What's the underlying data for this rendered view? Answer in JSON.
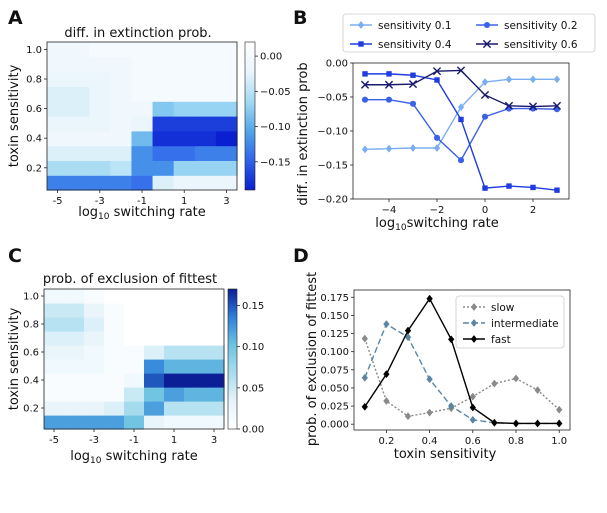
{
  "panels": {
    "A": {
      "letter": "A",
      "chart_data": {
        "type": "heatmap",
        "title": "diff. in extinction prob.",
        "xlabel_prefix": "log",
        "xlabel_sub": "10",
        "xlabel_suffix": " switching rate",
        "ylabel": "toxin sensitivity",
        "x_values": [
          -5,
          -4,
          -3,
          -2,
          -1,
          0,
          1,
          2,
          3
        ],
        "x_tick_labels": [
          "-5",
          "-3",
          "-1",
          "1",
          "3"
        ],
        "x_tick_positions": [
          -5,
          -3,
          -1,
          1,
          3
        ],
        "y_values": [
          0.1,
          0.2,
          0.3,
          0.4,
          0.5,
          0.6,
          0.7,
          0.8,
          0.9,
          1.0
        ],
        "y_tick_labels": [
          "0.2",
          "0.4",
          "0.6",
          "0.8",
          "1.0"
        ],
        "y_tick_positions": [
          0.2,
          0.4,
          0.6,
          0.8,
          1.0
        ],
        "colorbar": {
          "min": -0.19,
          "max": 0.02,
          "ticks": [
            0.0,
            -0.05,
            -0.1,
            -0.15
          ],
          "tick_labels": [
            "0.00",
            "−0.05",
            "−0.10",
            "−0.15"
          ],
          "colors": [
            "#0a1fd0",
            "#2f63ea",
            "#52a6ea",
            "#a3dbf3",
            "#eaf5fc",
            "#ffffff"
          ]
        },
        "z": [
          [
            -0.13,
            -0.13,
            -0.13,
            -0.13,
            -0.14,
            -0.03,
            -0.02,
            -0.02,
            -0.02
          ],
          [
            -0.06,
            -0.06,
            -0.06,
            -0.05,
            -0.12,
            -0.12,
            -0.07,
            -0.07,
            -0.07
          ],
          [
            -0.03,
            -0.03,
            -0.03,
            -0.03,
            -0.12,
            -0.14,
            -0.14,
            -0.13,
            -0.13
          ],
          [
            -0.01,
            -0.01,
            -0.01,
            -0.01,
            -0.09,
            -0.18,
            -0.18,
            -0.18,
            -0.19
          ],
          [
            -0.02,
            -0.02,
            -0.02,
            -0.01,
            -0.02,
            -0.17,
            -0.17,
            -0.17,
            -0.17
          ],
          [
            -0.03,
            -0.03,
            -0.02,
            -0.01,
            -0.01,
            -0.08,
            -0.07,
            -0.07,
            -0.07
          ],
          [
            -0.03,
            -0.03,
            -0.02,
            -0.01,
            0.0,
            0.0,
            0.0,
            0.0,
            0.0
          ],
          [
            -0.02,
            -0.02,
            -0.02,
            -0.01,
            0.0,
            0.0,
            0.0,
            0.0,
            0.0
          ],
          [
            -0.01,
            -0.01,
            -0.01,
            -0.01,
            0.0,
            0.0,
            0.0,
            0.0,
            0.0
          ],
          [
            -0.01,
            -0.01,
            0.0,
            0.0,
            0.0,
            0.0,
            0.0,
            0.0,
            0.0
          ]
        ]
      }
    },
    "B": {
      "letter": "B",
      "chart_data": {
        "type": "line",
        "title": "",
        "xlabel_prefix": "log",
        "xlabel_sub": "10",
        "xlabel_suffix": "switching rate",
        "ylabel": "diff. in extinction prob",
        "xlim": [
          -5.5,
          3.5
        ],
        "ylim": [
          -0.2,
          0.0
        ],
        "x_ticks": [
          -4,
          -2,
          0,
          2
        ],
        "x_tick_labels": [
          "−4",
          "−2",
          "0",
          "2"
        ],
        "y_ticks": [
          -0.2,
          -0.15,
          -0.1,
          -0.05,
          0.0
        ],
        "y_tick_labels": [
          "−0.20",
          "−0.15",
          "−0.10",
          "−0.05",
          "0.00"
        ],
        "x": [
          -5,
          -4,
          -3,
          -2,
          -1,
          0,
          1,
          2,
          3
        ],
        "legend_position": "top",
        "series": [
          {
            "name": "sensitivity 0.1",
            "color": "#7aaef2",
            "marker": "diamond",
            "values": [
              -0.127,
              -0.126,
              -0.125,
              -0.125,
              -0.065,
              -0.028,
              -0.024,
              -0.024,
              -0.024
            ]
          },
          {
            "name": "sensitivity 0.2",
            "color": "#3b62e6",
            "marker": "circle",
            "values": [
              -0.054,
              -0.054,
              -0.06,
              -0.11,
              -0.143,
              -0.079,
              -0.067,
              -0.067,
              -0.068
            ]
          },
          {
            "name": "sensitivity 0.4",
            "color": "#1f3ce0",
            "marker": "square",
            "values": [
              -0.016,
              -0.016,
              -0.018,
              -0.025,
              -0.083,
              -0.184,
              -0.181,
              -0.183,
              -0.187
            ]
          },
          {
            "name": "sensitivity 0.6",
            "color": "#16186e",
            "marker": "x",
            "values": [
              -0.032,
              -0.032,
              -0.031,
              -0.012,
              -0.011,
              -0.047,
              -0.063,
              -0.064,
              -0.063
            ]
          }
        ]
      }
    },
    "C": {
      "letter": "C",
      "chart_data": {
        "type": "heatmap",
        "title": "prob. of exclusion of fittest",
        "xlabel_prefix": "log",
        "xlabel_sub": "10",
        "xlabel_suffix": " switching rate",
        "ylabel": "toxin sensitivity",
        "x_values": [
          -5,
          -4,
          -3,
          -2,
          -1,
          0,
          1,
          2,
          3
        ],
        "x_tick_labels": [
          "-5",
          "-3",
          "-1",
          "1",
          "3"
        ],
        "x_tick_positions": [
          -5,
          -3,
          -1,
          1,
          3
        ],
        "y_values": [
          0.1,
          0.2,
          0.3,
          0.4,
          0.5,
          0.6,
          0.7,
          0.8,
          0.9,
          1.0
        ],
        "y_tick_labels": [
          "0.2",
          "0.4",
          "0.6",
          "0.8",
          "1.0"
        ],
        "y_tick_positions": [
          0.2,
          0.4,
          0.6,
          0.8,
          1.0
        ],
        "colorbar": {
          "min": 0.0,
          "max": 0.17,
          "ticks": [
            0.0,
            0.05,
            0.1,
            0.15
          ],
          "tick_labels": [
            "0.00",
            "0.05",
            "0.10",
            "0.15"
          ],
          "colors": [
            "#ffffff",
            "#e6f4fb",
            "#a9dcee",
            "#6ec4e2",
            "#2e7fd9",
            "#0b1e96"
          ]
        },
        "z": [
          [
            0.12,
            0.12,
            0.12,
            0.12,
            0.1,
            0.03,
            0.02,
            0.02,
            0.02
          ],
          [
            0.03,
            0.03,
            0.03,
            0.04,
            0.07,
            0.12,
            0.06,
            0.06,
            0.06
          ],
          [
            0.01,
            0.01,
            0.01,
            0.01,
            0.05,
            0.1,
            0.12,
            0.11,
            0.11
          ],
          [
            0.01,
            0.01,
            0.01,
            0.01,
            0.02,
            0.15,
            0.17,
            0.17,
            0.17
          ],
          [
            0.02,
            0.02,
            0.02,
            0.01,
            0.01,
            0.13,
            0.11,
            0.11,
            0.11
          ],
          [
            0.03,
            0.03,
            0.02,
            0.01,
            0.01,
            0.04,
            0.06,
            0.06,
            0.06
          ],
          [
            0.04,
            0.04,
            0.03,
            0.01,
            0.0,
            0.0,
            0.0,
            0.0,
            0.0
          ],
          [
            0.06,
            0.06,
            0.04,
            0.01,
            0.0,
            0.0,
            0.0,
            0.0,
            0.0
          ],
          [
            0.05,
            0.05,
            0.03,
            0.01,
            0.0,
            0.0,
            0.0,
            0.0,
            0.0
          ],
          [
            0.02,
            0.02,
            0.01,
            0.0,
            0.0,
            0.0,
            0.0,
            0.0,
            0.0
          ]
        ]
      }
    },
    "D": {
      "letter": "D",
      "chart_data": {
        "type": "line",
        "title": "",
        "xlabel": "toxin sensitivity",
        "ylabel": "prob. of exclusion of fittest",
        "xlim": [
          0.05,
          1.05
        ],
        "ylim": [
          -0.008,
          0.185
        ],
        "x_ticks": [
          0.2,
          0.4,
          0.6,
          0.8,
          1.0
        ],
        "x_tick_labels": [
          "0.2",
          "0.4",
          "0.6",
          "0.8",
          "1.0"
        ],
        "y_ticks": [
          0.0,
          0.025,
          0.05,
          0.075,
          0.1,
          0.125,
          0.15,
          0.175
        ],
        "y_tick_labels": [
          "0.000",
          "0.025",
          "0.050",
          "0.075",
          "0.100",
          "0.125",
          "0.150",
          "0.175"
        ],
        "x": [
          0.1,
          0.2,
          0.3,
          0.4,
          0.5,
          0.6,
          0.7,
          0.8,
          0.9,
          1.0
        ],
        "legend_position": "top-right",
        "series": [
          {
            "name": "slow",
            "color": "#8a8a8a",
            "marker": "diamond",
            "dash": "2,2",
            "values": [
              0.118,
              0.032,
              0.011,
              0.016,
              0.022,
              0.038,
              0.056,
              0.063,
              0.047,
              0.02
            ]
          },
          {
            "name": "intermediate",
            "color": "#5a86a3",
            "marker": "diamond",
            "dash": "6,3",
            "values": [
              0.064,
              0.138,
              0.12,
              0.062,
              0.025,
              0.006,
              0.002,
              0.001,
              0.001,
              0.001
            ]
          },
          {
            "name": "fast",
            "color": "#000000",
            "marker": "diamond",
            "dash": "",
            "values": [
              0.024,
              0.069,
              0.129,
              0.173,
              0.117,
              0.023,
              0.002,
              0.001,
              0.001,
              0.001
            ]
          }
        ]
      }
    }
  }
}
